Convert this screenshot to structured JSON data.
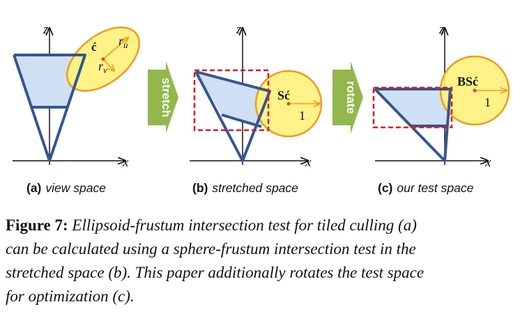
{
  "figure": {
    "panels": [
      {
        "axis_z": "z",
        "axis_x": "x",
        "center_label": "ć",
        "label_ru": "r",
        "label_ru_sub": "u",
        "label_rv": "r",
        "label_rv_sub": "v",
        "caption_tag": "(a)",
        "caption_text": "view space"
      },
      {
        "axis_z": "z",
        "axis_x": "x",
        "sphere_label": "Sć",
        "radius_label": "1",
        "caption_tag": "(b)",
        "caption_text": "stretched space"
      },
      {
        "axis_z": "z",
        "axis_x": "x",
        "sphere_label": "BSć",
        "radius_label": "1",
        "caption_tag": "(c)",
        "caption_text": "our test space"
      }
    ],
    "arrows": [
      {
        "label": "stretch"
      },
      {
        "label": "rotate"
      }
    ]
  },
  "caption": {
    "label": "Figure 7:",
    "line1": "Ellipsoid-frustum intersection test for tiled culling (a)",
    "line2": "can be calculated using a sphere-frustum intersection test in the",
    "line3": "stretched space (b). This paper additionally rotates the test space",
    "line4": "for optimization (c)."
  },
  "colors": {
    "frustum_fill": "#cfe0f4",
    "frustum_stroke": "#35568f",
    "sphere_fill": "#fff176",
    "sphere_stroke": "#ef9b1f",
    "bbox_stroke": "#e0161b",
    "arrow_green": "#92b84c",
    "center_dot": "#e8402a"
  }
}
